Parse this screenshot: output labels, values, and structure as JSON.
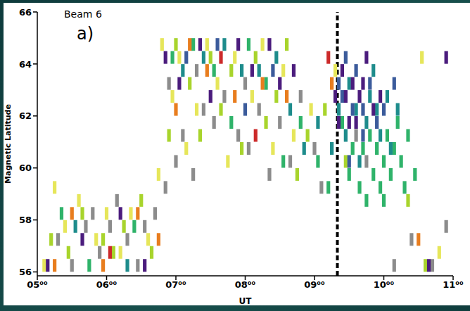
{
  "chart_data": {
    "type": "scatter",
    "marker": "rect",
    "title": "Beam 6",
    "annotations": [
      "a)"
    ],
    "x_label": "UT",
    "y_label": "Magnetic Latitude",
    "xlim": [
      5,
      11
    ],
    "xticks": [
      {
        "value": 5,
        "label": "05⁰⁰"
      },
      {
        "value": 6,
        "label": "06⁰⁰"
      },
      {
        "value": 7,
        "label": "07⁰⁰"
      },
      {
        "value": 8,
        "label": "08⁰⁰"
      },
      {
        "value": 9,
        "label": "09⁰⁰"
      },
      {
        "value": 10,
        "label": "10⁰⁰"
      },
      {
        "value": 11,
        "label": "11⁰⁰"
      }
    ],
    "ylim": [
      55.85,
      66
    ],
    "yticks": [
      56,
      58,
      60,
      62,
      64,
      66
    ],
    "grid": false,
    "reference_lines": [
      {
        "x": 9.33,
        "line_style": "dashed"
      }
    ],
    "series": [
      {
        "color": "#8c8c8c",
        "values": [
          [
            5.3,
            57.25
          ],
          [
            5.5,
            56.25
          ],
          [
            5.7,
            57.75
          ],
          [
            5.8,
            58.25
          ],
          [
            5.9,
            56.75
          ],
          [
            6.05,
            57.75
          ],
          [
            6.15,
            58.75
          ],
          [
            6.3,
            57.25
          ],
          [
            6.45,
            56.25
          ],
          [
            6.55,
            57.75
          ],
          [
            6.7,
            58.25
          ],
          [
            6.85,
            59.25
          ],
          [
            7.0,
            60.25
          ],
          [
            7.1,
            61.25
          ],
          [
            7.25,
            59.75
          ],
          [
            7.4,
            62.25
          ],
          [
            7.55,
            61.75
          ],
          [
            7.7,
            62.75
          ],
          [
            7.9,
            61.25
          ],
          [
            8.05,
            60.75
          ],
          [
            8.2,
            62.25
          ],
          [
            8.35,
            59.75
          ],
          [
            8.5,
            61.75
          ],
          [
            8.65,
            60.25
          ],
          [
            8.8,
            62.75
          ],
          [
            9.0,
            60.75
          ],
          [
            9.1,
            59.25
          ],
          [
            9.6,
            61.25
          ],
          [
            9.75,
            60.25
          ],
          [
            10.15,
            56.25
          ],
          [
            10.4,
            57.25
          ],
          [
            10.7,
            56.25
          ],
          [
            10.9,
            57.75
          ],
          [
            6.9,
            63.25
          ],
          [
            7.3,
            63.75
          ],
          [
            8.0,
            63.25
          ]
        ]
      },
      {
        "color": "#e6e65a",
        "values": [
          [
            5.1,
            56.25
          ],
          [
            5.4,
            57.75
          ],
          [
            5.6,
            58.75
          ],
          [
            5.85,
            57.25
          ],
          [
            6.0,
            58.25
          ],
          [
            6.2,
            56.75
          ],
          [
            6.35,
            58.25
          ],
          [
            6.6,
            57.25
          ],
          [
            6.8,
            64.75
          ],
          [
            6.95,
            62.75
          ],
          [
            7.05,
            64.25
          ],
          [
            7.15,
            60.75
          ],
          [
            7.3,
            62.25
          ],
          [
            7.45,
            64.75
          ],
          [
            7.6,
            63.25
          ],
          [
            7.75,
            60.25
          ],
          [
            7.85,
            64.25
          ],
          [
            8.1,
            62.75
          ],
          [
            8.25,
            64.75
          ],
          [
            8.4,
            60.75
          ],
          [
            8.55,
            63.75
          ],
          [
            8.7,
            61.25
          ],
          [
            8.95,
            62.25
          ],
          [
            9.3,
            63.75
          ],
          [
            10.55,
            64.25
          ],
          [
            10.8,
            56.75
          ],
          [
            6.75,
            59.75
          ],
          [
            5.25,
            59.25
          ]
        ]
      },
      {
        "color": "#a8d42c",
        "values": [
          [
            5.2,
            57.25
          ],
          [
            5.45,
            56.75
          ],
          [
            5.65,
            58.25
          ],
          [
            5.95,
            57.25
          ],
          [
            6.1,
            56.75
          ],
          [
            6.25,
            57.75
          ],
          [
            6.5,
            58.75
          ],
          [
            6.65,
            56.75
          ],
          [
            6.9,
            61.25
          ],
          [
            7.0,
            64.75
          ],
          [
            7.2,
            63.25
          ],
          [
            7.35,
            61.25
          ],
          [
            7.5,
            64.25
          ],
          [
            7.65,
            62.25
          ],
          [
            7.8,
            63.75
          ],
          [
            7.95,
            60.75
          ],
          [
            8.15,
            64.25
          ],
          [
            8.3,
            61.75
          ],
          [
            8.45,
            62.75
          ],
          [
            8.6,
            64.75
          ],
          [
            8.75,
            59.75
          ],
          [
            8.9,
            61.25
          ],
          [
            9.15,
            62.25
          ],
          [
            9.45,
            60.25
          ],
          [
            10.35,
            58.75
          ],
          [
            10.6,
            56.25
          ]
        ]
      },
      {
        "color": "#2fb36a",
        "values": [
          [
            5.35,
            58.25
          ],
          [
            5.75,
            56.25
          ],
          [
            6.4,
            57.75
          ],
          [
            6.95,
            64.25
          ],
          [
            7.25,
            64.75
          ],
          [
            7.55,
            63.75
          ],
          [
            7.8,
            61.75
          ],
          [
            8.05,
            64.75
          ],
          [
            8.3,
            63.25
          ],
          [
            8.55,
            60.25
          ],
          [
            8.8,
            61.75
          ],
          [
            9.05,
            60.25
          ],
          [
            9.2,
            59.25
          ],
          [
            9.4,
            61.75
          ],
          [
            9.5,
            59.75
          ],
          [
            9.55,
            60.75
          ],
          [
            9.65,
            59.25
          ],
          [
            9.7,
            60.75
          ],
          [
            9.8,
            61.25
          ],
          [
            9.85,
            59.75
          ],
          [
            9.9,
            60.75
          ],
          [
            9.95,
            59.25
          ],
          [
            10.0,
            60.25
          ],
          [
            10.05,
            61.25
          ],
          [
            10.1,
            59.75
          ],
          [
            10.15,
            60.75
          ],
          [
            10.2,
            61.75
          ],
          [
            10.25,
            60.25
          ],
          [
            10.3,
            59.25
          ],
          [
            10.35,
            61.25
          ],
          [
            10.45,
            59.75
          ],
          [
            9.75,
            58.75
          ],
          [
            10.0,
            58.75
          ]
        ]
      },
      {
        "color": "#1e8c8c",
        "values": [
          [
            5.55,
            57.75
          ],
          [
            6.3,
            56.25
          ],
          [
            7.1,
            63.75
          ],
          [
            7.4,
            64.25
          ],
          [
            7.7,
            64.75
          ],
          [
            7.95,
            63.75
          ],
          [
            8.2,
            63.75
          ],
          [
            8.45,
            64.25
          ],
          [
            8.65,
            62.25
          ],
          [
            8.85,
            60.75
          ],
          [
            9.05,
            61.75
          ],
          [
            9.25,
            60.75
          ],
          [
            9.35,
            62.25
          ],
          [
            9.45,
            61.25
          ],
          [
            9.5,
            63.25
          ],
          [
            9.6,
            62.25
          ],
          [
            9.65,
            60.25
          ],
          [
            9.75,
            61.75
          ],
          [
            9.8,
            62.75
          ],
          [
            9.9,
            62.25
          ],
          [
            9.95,
            61.25
          ],
          [
            10.05,
            62.75
          ],
          [
            10.1,
            60.75
          ],
          [
            9.85,
            63.75
          ],
          [
            10.2,
            62.25
          ]
        ]
      },
      {
        "color": "#3b5b9b",
        "values": [
          [
            7.15,
            64.25
          ],
          [
            7.6,
            64.75
          ],
          [
            8.0,
            62.25
          ],
          [
            8.4,
            63.75
          ],
          [
            9.35,
            63.25
          ],
          [
            9.4,
            62.75
          ],
          [
            9.45,
            64.25
          ],
          [
            9.55,
            62.25
          ],
          [
            9.6,
            63.75
          ],
          [
            9.7,
            62.25
          ],
          [
            9.8,
            63.25
          ],
          [
            9.9,
            61.75
          ],
          [
            10.0,
            62.25
          ],
          [
            9.5,
            60.25
          ],
          [
            9.7,
            61.25
          ],
          [
            10.15,
            63.25
          ]
        ]
      },
      {
        "color": "#4b1c7d",
        "values": [
          [
            5.15,
            56.25
          ],
          [
            5.65,
            57.25
          ],
          [
            6.2,
            58.25
          ],
          [
            6.55,
            56.25
          ],
          [
            6.85,
            64.25
          ],
          [
            7.05,
            63.25
          ],
          [
            7.35,
            64.75
          ],
          [
            7.5,
            62.75
          ],
          [
            7.9,
            64.75
          ],
          [
            8.1,
            63.75
          ],
          [
            8.35,
            64.75
          ],
          [
            8.5,
            63.25
          ],
          [
            8.7,
            63.75
          ],
          [
            9.3,
            62.75
          ],
          [
            9.35,
            61.75
          ],
          [
            9.4,
            63.75
          ],
          [
            9.45,
            62.75
          ],
          [
            9.5,
            61.75
          ],
          [
            9.55,
            63.25
          ],
          [
            9.6,
            61.75
          ],
          [
            9.65,
            62.75
          ],
          [
            9.7,
            63.25
          ],
          [
            9.75,
            64.25
          ],
          [
            9.85,
            62.25
          ],
          [
            9.95,
            62.75
          ],
          [
            10.9,
            64.25
          ],
          [
            10.65,
            56.25
          ]
        ]
      },
      {
        "color": "#e87d1e",
        "values": [
          [
            5.25,
            56.25
          ],
          [
            5.5,
            58.25
          ],
          [
            5.95,
            56.25
          ],
          [
            6.45,
            58.25
          ],
          [
            6.75,
            57.25
          ],
          [
            7.0,
            62.25
          ],
          [
            7.2,
            64.75
          ],
          [
            7.45,
            63.75
          ],
          [
            7.85,
            62.75
          ],
          [
            8.25,
            63.25
          ],
          [
            8.6,
            62.75
          ],
          [
            9.25,
            63.25
          ],
          [
            10.5,
            57.25
          ]
        ]
      },
      {
        "color": "#cc2a2a",
        "values": [
          [
            6.05,
            56.75
          ],
          [
            7.65,
            64.25
          ],
          [
            8.15,
            61.25
          ],
          [
            9.2,
            64.25
          ]
        ]
      }
    ]
  }
}
